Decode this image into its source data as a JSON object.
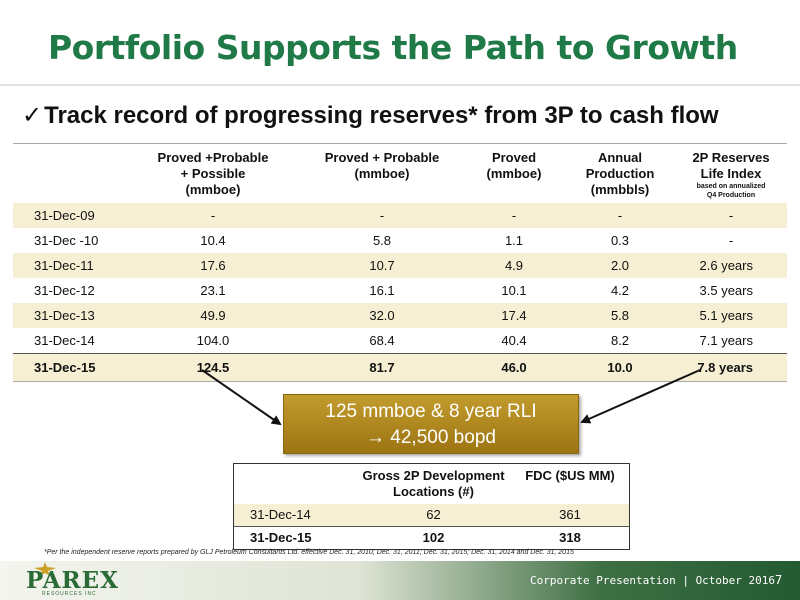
{
  "slide": {
    "title": "Portfolio Supports the Path to Growth",
    "subtitle_check": "✓",
    "subtitle": "Track record of progressing reserves* from 3P to cash flow"
  },
  "reserves_table": {
    "headers": {
      "date": "",
      "p3": [
        "Proved +Probable",
        "+ Possible",
        "(mmboe)"
      ],
      "p2": [
        "Proved + Probable",
        "(mmboe)"
      ],
      "proved": [
        "Proved",
        "(mmboe)"
      ],
      "production": [
        "Annual",
        "Production",
        "(mmbbls)"
      ],
      "rli": [
        "2P Reserves",
        "Life Index"
      ],
      "rli_note": [
        "based on annualized",
        "Q4 Production"
      ]
    },
    "rows": [
      {
        "date": "31-Dec-09",
        "p3": "-",
        "p2": "-",
        "proved": "-",
        "production": "-",
        "rli": "-"
      },
      {
        "date": "31-Dec -10",
        "p3": "10.4",
        "p2": "5.8",
        "proved": "1.1",
        "production": "0.3",
        "rli": "-"
      },
      {
        "date": "31-Dec-11",
        "p3": "17.6",
        "p2": "10.7",
        "proved": "4.9",
        "production": "2.0",
        "rli": "2.6 years"
      },
      {
        "date": "31-Dec-12",
        "p3": "23.1",
        "p2": "16.1",
        "proved": "10.1",
        "production": "4.2",
        "rli": "3.5 years"
      },
      {
        "date": "31-Dec-13",
        "p3": "49.9",
        "p2": "32.0",
        "proved": "17.4",
        "production": "5.8",
        "rli": "5.1 years"
      },
      {
        "date": "31-Dec-14",
        "p3": "104.0",
        "p2": "68.4",
        "proved": "40.4",
        "production": "8.2",
        "rli": "7.1 years"
      },
      {
        "date": "31-Dec-15",
        "p3": "124.5",
        "p2": "81.7",
        "proved": "46.0",
        "production": "10.0",
        "rli": "7.8 years"
      }
    ]
  },
  "highlight": {
    "line1": "125 mmboe & 8 year RLI",
    "line2": "→ 42,500 bopd"
  },
  "development_table": {
    "headers": {
      "date": "",
      "locations": [
        "Gross 2P Development",
        "Locations (#)"
      ],
      "fdc": [
        "FDC ($US MM)"
      ]
    },
    "rows": [
      {
        "date": "31-Dec-14",
        "locations": "62",
        "fdc": "361"
      },
      {
        "date": "31-Dec-15",
        "locations": "102",
        "fdc": "318"
      }
    ]
  },
  "footnote": "*Per the independent reserve reports prepared by GLJ Petroleum Consultants Ltd. effective  Dec. 31, 2010; Dec. 31, 2011; Dec. 31, 2015; Dec. 31, 2014 and Dec. 31, 2015",
  "footer": {
    "logo_text": "PAREX",
    "logo_sub": "RESOURCES INC",
    "presentation": "Corporate Presentation | October 2016",
    "page_number": "7"
  },
  "colors": {
    "title_green": "#1f7a47",
    "row_shade": "#f7efd3",
    "highlight_gold": "#b08520",
    "footer_green": "#235a31"
  },
  "icons": [
    "checkmark-icon",
    "arrow-right-icon",
    "logo-star-icon"
  ]
}
